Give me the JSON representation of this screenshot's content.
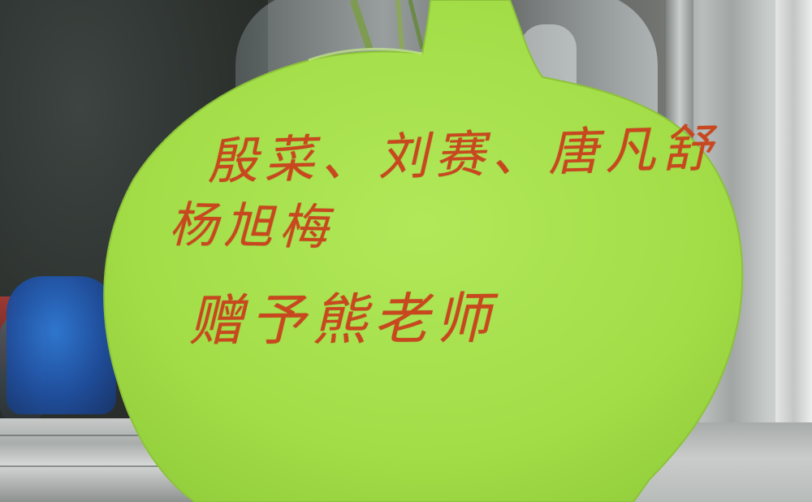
{
  "note": {
    "line_1": "殷菜、刘赛、唐凡舒",
    "line_2": "杨旭梅",
    "line_3": "赠予熊老师"
  },
  "colors": {
    "tag_green": "#a6e24a",
    "ink": "#c8471f"
  }
}
